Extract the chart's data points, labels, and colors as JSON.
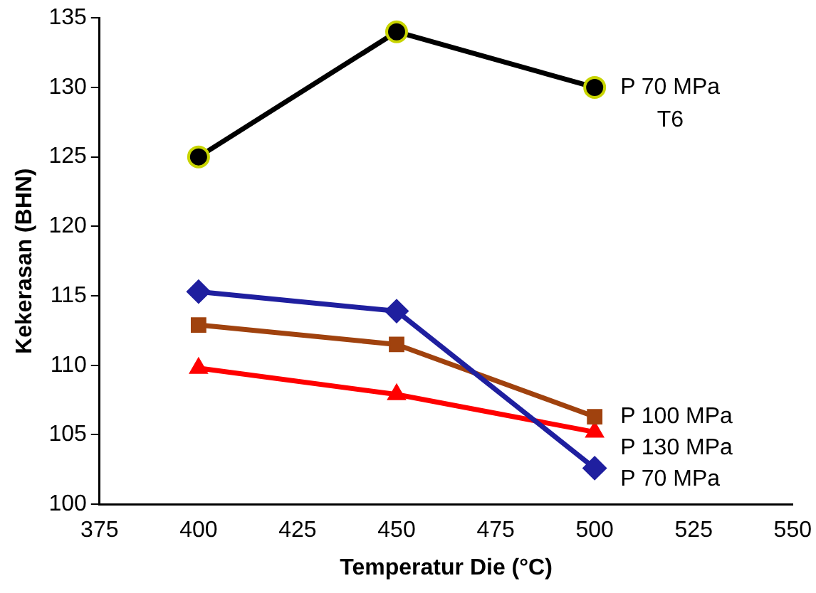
{
  "chart_data": {
    "type": "line",
    "xlabel": "Temperatur Die (°C)",
    "ylabel": "Kekerasan (BHN)",
    "x": [
      400,
      450,
      500
    ],
    "series": [
      {
        "name": "P 70 MPa T6",
        "color": "#000000",
        "marker": "circle",
        "values": [
          125,
          134,
          130
        ]
      },
      {
        "name": "P 70 MPa",
        "color": "#1f1f9f",
        "marker": "diamond",
        "values": [
          115.3,
          113.9,
          102.6
        ]
      },
      {
        "name": "P 100 MPa",
        "color": "#a0420e",
        "marker": "square",
        "values": [
          112.9,
          111.5,
          106.3
        ]
      },
      {
        "name": "P 130 MPa",
        "color": "#ff0000",
        "marker": "triangle",
        "values": [
          109.8,
          107.9,
          105.2
        ]
      }
    ],
    "xlim": [
      375,
      550
    ],
    "xticks": [
      375,
      400,
      425,
      450,
      475,
      500,
      525,
      550
    ],
    "ylim": [
      100,
      135
    ],
    "yticks": [
      100,
      105,
      110,
      115,
      120,
      125,
      130,
      135
    ],
    "grid": false,
    "legend": false
  }
}
